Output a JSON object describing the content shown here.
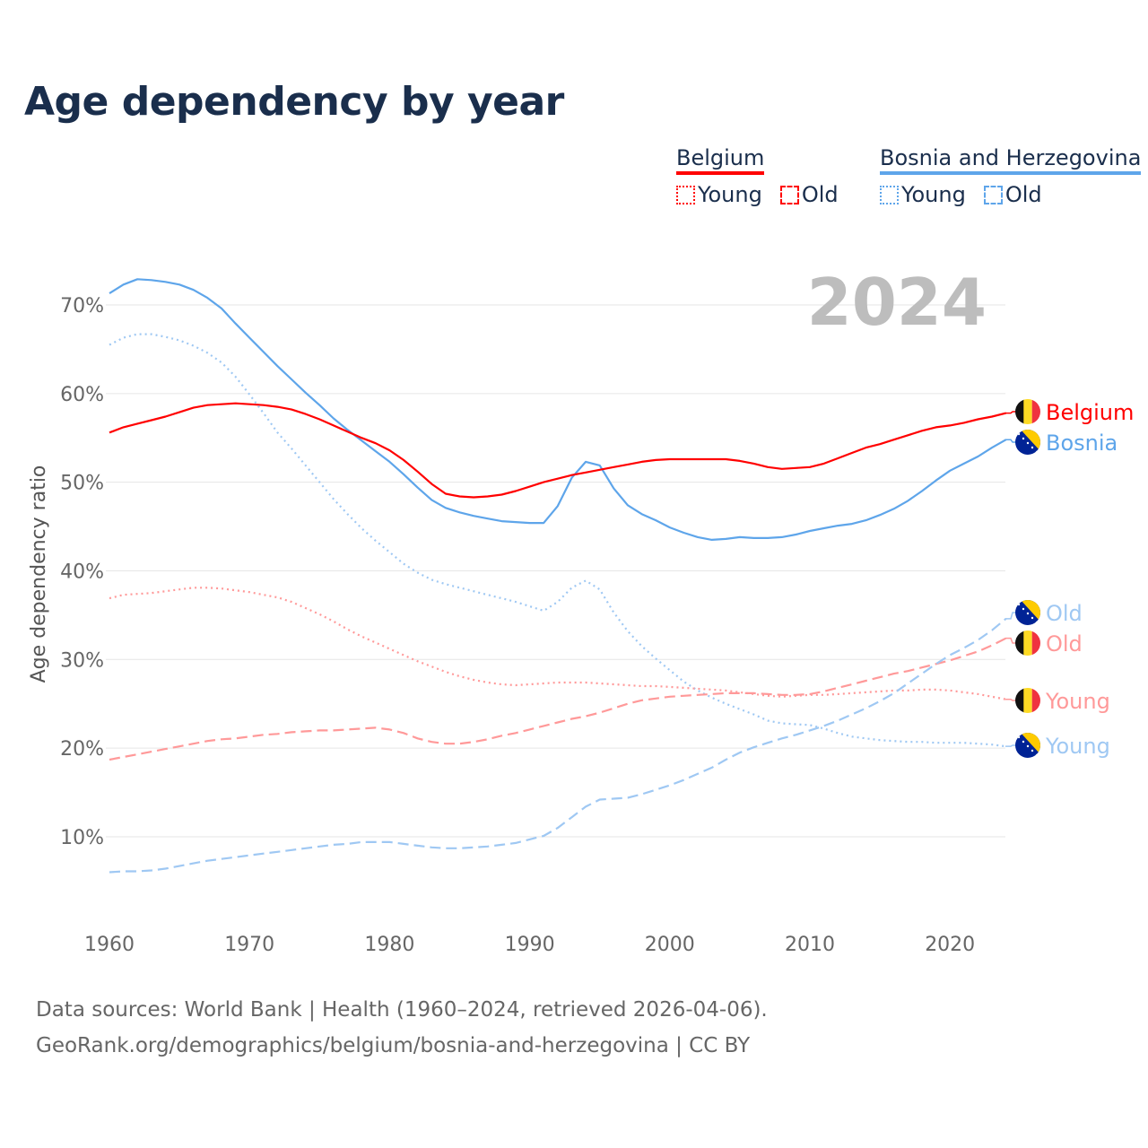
{
  "chart_data": {
    "type": "line",
    "title": "Age dependency by year",
    "ylabel": "Age dependency ratio",
    "xlabel": "",
    "year_label": "2024",
    "xlim": [
      1960,
      2024
    ],
    "ylim": [
      0,
      74
    ],
    "x_ticks": [
      "1960",
      "1970",
      "1980",
      "1990",
      "2000",
      "2010",
      "2020"
    ],
    "y_ticks": [
      "10%",
      "20%",
      "30%",
      "40%",
      "50%",
      "60%",
      "70%"
    ],
    "grid": true,
    "legend": {
      "position": "top-right",
      "groups": [
        {
          "name": "Belgium",
          "color": "#ff0000",
          "items": [
            "Young",
            "Old"
          ]
        },
        {
          "name": "Bosnia and Herzegovina",
          "color": "#5ea5ea",
          "items": [
            "Young",
            "Old"
          ]
        }
      ]
    },
    "x_start": 1960,
    "series": [
      {
        "name": "Bosnia",
        "country": "Bosnia and Herzegovina",
        "kind": "total",
        "color": "#5ea5ea",
        "end_label": "Bosnia",
        "values": [
          71.3,
          72.3,
          72.9,
          72.8,
          72.6,
          72.3,
          71.7,
          70.8,
          69.6,
          67.9,
          66.3,
          64.7,
          63.1,
          61.6,
          60.1,
          58.7,
          57.2,
          55.9,
          54.7,
          53.5,
          52.3,
          50.9,
          49.4,
          48.0,
          47.1,
          46.6,
          46.2,
          45.9,
          45.6,
          45.5,
          45.4,
          45.4,
          47.3,
          50.5,
          52.3,
          51.9,
          49.3,
          47.4,
          46.4,
          45.7,
          44.9,
          44.3,
          43.8,
          43.5,
          43.6,
          43.8,
          43.7,
          43.7,
          43.8,
          44.1,
          44.5,
          44.8,
          45.1,
          45.3,
          45.7,
          46.3,
          47.0,
          47.9,
          49.0,
          50.2,
          51.3,
          52.1,
          52.9,
          53.9,
          54.8
        ]
      },
      {
        "name": "Belgium",
        "country": "Belgium",
        "kind": "total",
        "color": "#ff0000",
        "end_label": "Belgium",
        "values": [
          55.6,
          56.2,
          56.6,
          57.0,
          57.4,
          57.9,
          58.4,
          58.7,
          58.8,
          58.9,
          58.8,
          58.7,
          58.5,
          58.2,
          57.7,
          57.1,
          56.4,
          55.7,
          55.0,
          54.4,
          53.6,
          52.5,
          51.2,
          49.8,
          48.7,
          48.4,
          48.3,
          48.4,
          48.6,
          49.0,
          49.5,
          50.0,
          50.4,
          50.8,
          51.1,
          51.4,
          51.7,
          52.0,
          52.3,
          52.5,
          52.6,
          52.6,
          52.6,
          52.6,
          52.6,
          52.4,
          52.1,
          51.7,
          51.5,
          51.6,
          51.7,
          52.1,
          52.7,
          53.3,
          53.9,
          54.3,
          54.8,
          55.3,
          55.8,
          56.2,
          56.4,
          56.7,
          57.1,
          57.4,
          57.8
        ]
      },
      {
        "name": "Bosnia Young",
        "country": "Bosnia and Herzegovina",
        "kind": "young",
        "color": "#9fc8f3",
        "end_label": "Young",
        "values": [
          65.5,
          66.3,
          66.7,
          66.7,
          66.4,
          66.0,
          65.4,
          64.6,
          63.5,
          61.9,
          59.9,
          57.8,
          55.6,
          53.8,
          51.9,
          50.0,
          48.1,
          46.4,
          44.8,
          43.4,
          42.1,
          40.8,
          39.8,
          39.0,
          38.5,
          38.1,
          37.7,
          37.3,
          36.9,
          36.5,
          36.0,
          35.5,
          36.5,
          38.1,
          38.9,
          37.9,
          35.3,
          33.2,
          31.5,
          30.1,
          28.8,
          27.5,
          26.5,
          25.7,
          25.0,
          24.4,
          23.8,
          23.1,
          22.8,
          22.7,
          22.6,
          22.2,
          21.7,
          21.3,
          21.1,
          20.9,
          20.8,
          20.7,
          20.7,
          20.6,
          20.6,
          20.6,
          20.5,
          20.4,
          20.2
        ]
      },
      {
        "name": "Belgium Young",
        "country": "Belgium",
        "kind": "young",
        "color": "#ff9999",
        "end_label": "Young",
        "values": [
          36.9,
          37.3,
          37.4,
          37.5,
          37.7,
          37.9,
          38.1,
          38.1,
          38.0,
          37.8,
          37.6,
          37.3,
          37.0,
          36.5,
          35.8,
          35.1,
          34.3,
          33.4,
          32.6,
          31.9,
          31.2,
          30.5,
          29.8,
          29.2,
          28.6,
          28.1,
          27.7,
          27.4,
          27.2,
          27.1,
          27.2,
          27.3,
          27.4,
          27.4,
          27.4,
          27.3,
          27.2,
          27.1,
          27.0,
          27.0,
          26.9,
          26.8,
          26.7,
          26.6,
          26.5,
          26.3,
          26.1,
          25.9,
          25.8,
          25.9,
          26.0,
          26.0,
          26.1,
          26.2,
          26.3,
          26.4,
          26.5,
          26.5,
          26.6,
          26.6,
          26.5,
          26.3,
          26.1,
          25.8,
          25.5
        ]
      },
      {
        "name": "Belgium Old",
        "country": "Belgium",
        "kind": "old",
        "color": "#ff9999",
        "end_label": "Old",
        "values": [
          18.7,
          19.0,
          19.3,
          19.6,
          19.9,
          20.2,
          20.5,
          20.8,
          21.0,
          21.1,
          21.3,
          21.5,
          21.6,
          21.8,
          21.9,
          22.0,
          22.0,
          22.1,
          22.2,
          22.3,
          22.1,
          21.7,
          21.1,
          20.7,
          20.5,
          20.5,
          20.7,
          21.0,
          21.4,
          21.7,
          22.1,
          22.5,
          22.9,
          23.3,
          23.6,
          24.0,
          24.5,
          25.0,
          25.4,
          25.6,
          25.8,
          25.9,
          26.0,
          26.1,
          26.2,
          26.2,
          26.2,
          26.1,
          26.0,
          26.0,
          26.1,
          26.4,
          26.8,
          27.2,
          27.6,
          28.0,
          28.4,
          28.7,
          29.1,
          29.5,
          29.9,
          30.4,
          30.9,
          31.6,
          32.4
        ]
      },
      {
        "name": "Bosnia Old",
        "country": "Bosnia and Herzegovina",
        "kind": "old",
        "color": "#9fc8f3",
        "end_label": "Old",
        "values": [
          6.0,
          6.1,
          6.1,
          6.2,
          6.4,
          6.7,
          7.0,
          7.3,
          7.5,
          7.7,
          7.9,
          8.1,
          8.3,
          8.5,
          8.7,
          8.9,
          9.1,
          9.2,
          9.4,
          9.4,
          9.4,
          9.2,
          9.0,
          8.8,
          8.7,
          8.7,
          8.8,
          8.9,
          9.1,
          9.3,
          9.7,
          10.1,
          11.0,
          12.2,
          13.4,
          14.2,
          14.3,
          14.4,
          14.8,
          15.3,
          15.8,
          16.4,
          17.1,
          17.8,
          18.7,
          19.5,
          20.1,
          20.6,
          21.1,
          21.5,
          22.0,
          22.5,
          23.1,
          23.8,
          24.5,
          25.3,
          26.2,
          27.3,
          28.4,
          29.5,
          30.5,
          31.3,
          32.2,
          33.3,
          34.6
        ]
      }
    ]
  },
  "footer": {
    "line1": "Data sources: World Bank | Health (1960–2024, retrieved 2026-04-06).",
    "line2": "GeoRank.org/demographics/belgium/bosnia-and-herzegovina | CC BY"
  }
}
